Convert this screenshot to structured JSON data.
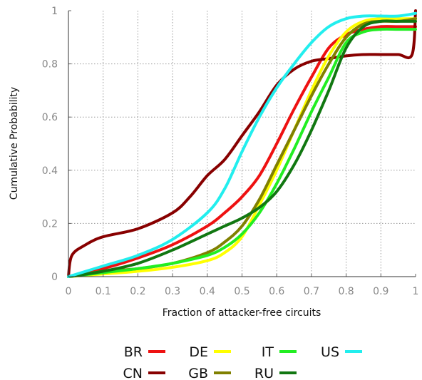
{
  "chart_data": {
    "type": "line",
    "title": "",
    "xlabel": "Fraction of attacker-free circuits",
    "ylabel": "Cumulative Probability",
    "xlim": [
      0,
      1
    ],
    "ylim": [
      0,
      1
    ],
    "x_ticks": [
      "0",
      "0.1",
      "0.2",
      "0.3",
      "0.4",
      "0.5",
      "0.6",
      "0.7",
      "0.8",
      "0.9",
      "1"
    ],
    "y_ticks": [
      "0",
      "0.2",
      "0.4",
      "0.6",
      "0.8",
      "1"
    ],
    "grid": true,
    "legend_position": "bottom",
    "series": [
      {
        "name": "BR",
        "color": "#ee1111",
        "x": [
          0,
          0.1,
          0.2,
          0.3,
          0.4,
          0.45,
          0.5,
          0.55,
          0.6,
          0.65,
          0.7,
          0.75,
          0.8,
          0.85,
          0.9,
          0.95,
          1.0
        ],
        "y": [
          0,
          0.03,
          0.07,
          0.12,
          0.19,
          0.24,
          0.3,
          0.38,
          0.5,
          0.63,
          0.75,
          0.86,
          0.91,
          0.93,
          0.94,
          0.94,
          0.94
        ]
      },
      {
        "name": "CN",
        "color": "#880000",
        "x": [
          0,
          0.01,
          0.05,
          0.1,
          0.2,
          0.3,
          0.35,
          0.4,
          0.45,
          0.5,
          0.55,
          0.6,
          0.65,
          0.7,
          0.75,
          0.8,
          0.85,
          0.9,
          0.95,
          0.99,
          1.0
        ],
        "y": [
          0,
          0.08,
          0.12,
          0.15,
          0.18,
          0.24,
          0.3,
          0.38,
          0.44,
          0.53,
          0.62,
          0.72,
          0.78,
          0.81,
          0.82,
          0.83,
          0.835,
          0.835,
          0.835,
          0.835,
          1.0
        ]
      },
      {
        "name": "DE",
        "color": "#ffff00",
        "x": [
          0,
          0.1,
          0.2,
          0.3,
          0.4,
          0.45,
          0.5,
          0.55,
          0.6,
          0.65,
          0.7,
          0.75,
          0.8,
          0.85,
          0.9,
          0.95,
          1.0
        ],
        "y": [
          0,
          0.01,
          0.02,
          0.035,
          0.06,
          0.09,
          0.15,
          0.27,
          0.4,
          0.55,
          0.7,
          0.83,
          0.92,
          0.96,
          0.97,
          0.97,
          0.97
        ]
      },
      {
        "name": "GB",
        "color": "#808000",
        "x": [
          0,
          0.1,
          0.2,
          0.3,
          0.4,
          0.45,
          0.5,
          0.55,
          0.6,
          0.65,
          0.7,
          0.75,
          0.8,
          0.85,
          0.9,
          0.95,
          1.0
        ],
        "y": [
          0,
          0.02,
          0.03,
          0.05,
          0.09,
          0.13,
          0.19,
          0.29,
          0.42,
          0.55,
          0.68,
          0.8,
          0.9,
          0.95,
          0.96,
          0.96,
          0.97
        ]
      },
      {
        "name": "IT",
        "color": "#22ee22",
        "x": [
          0,
          0.1,
          0.2,
          0.3,
          0.4,
          0.45,
          0.5,
          0.55,
          0.6,
          0.65,
          0.7,
          0.75,
          0.8,
          0.85,
          0.9,
          0.95,
          1.0
        ],
        "y": [
          0,
          0.015,
          0.03,
          0.05,
          0.08,
          0.11,
          0.16,
          0.24,
          0.35,
          0.48,
          0.62,
          0.75,
          0.88,
          0.92,
          0.93,
          0.93,
          0.93
        ]
      },
      {
        "name": "RU",
        "color": "#117711",
        "x": [
          0,
          0.1,
          0.2,
          0.3,
          0.4,
          0.45,
          0.5,
          0.55,
          0.6,
          0.65,
          0.7,
          0.75,
          0.8,
          0.85,
          0.9,
          0.95,
          1.0
        ],
        "y": [
          0,
          0.02,
          0.05,
          0.1,
          0.16,
          0.19,
          0.22,
          0.26,
          0.32,
          0.42,
          0.55,
          0.7,
          0.86,
          0.94,
          0.96,
          0.96,
          0.96
        ]
      },
      {
        "name": "US",
        "color": "#22eeee",
        "x": [
          0,
          0.1,
          0.2,
          0.3,
          0.4,
          0.45,
          0.5,
          0.55,
          0.6,
          0.65,
          0.7,
          0.75,
          0.8,
          0.85,
          0.9,
          0.95,
          1.0
        ],
        "y": [
          0,
          0.04,
          0.08,
          0.14,
          0.24,
          0.33,
          0.47,
          0.6,
          0.71,
          0.8,
          0.88,
          0.94,
          0.97,
          0.98,
          0.98,
          0.98,
          0.99
        ]
      }
    ],
    "legend_rows": [
      [
        "BR",
        "DE",
        "IT",
        "US"
      ],
      [
        "CN",
        "GB",
        "RU"
      ]
    ]
  }
}
